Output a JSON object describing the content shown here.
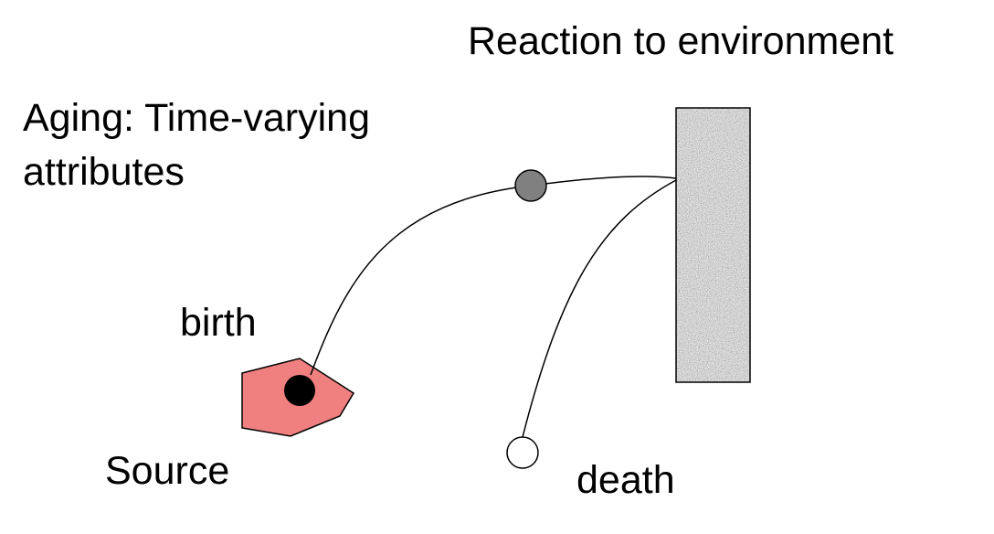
{
  "labels": {
    "reaction": "Reaction to environment",
    "aging_line1": "Aging: Time-varying",
    "aging_line2": "attributes",
    "birth": "birth",
    "source": "Source",
    "death": "death"
  },
  "colors": {
    "source_fill": "#f08080",
    "agent_mid_fill": "#808080",
    "birth_dot_fill": "#000000",
    "death_dot_fill": "#ffffff",
    "wall_fill": "#a9a9a9"
  }
}
